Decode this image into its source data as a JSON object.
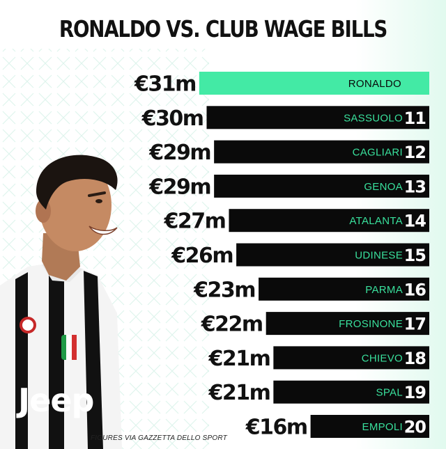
{
  "title": "RONALDO VS. CLUB WAGE BILLS",
  "footer": "FIGURES VIA GAZZETTA DELLO SPORT",
  "player_jersey_text": "Jeep",
  "colors": {
    "highlight": "#43eaa5",
    "bar": "#0a0a0a",
    "label_text": "#39e09c",
    "highlight_text": "#0a0a0a",
    "value_text": "#111111",
    "rank_text": "#ffffff"
  },
  "chart_data": {
    "type": "bar",
    "orientation": "horizontal",
    "title": "RONALDO VS. CLUB WAGE BILLS",
    "xlabel": "",
    "ylabel": "",
    "unit": "€m",
    "xlim": [
      0,
      31
    ],
    "grid": false,
    "categories": [
      "RONALDO",
      "SASSUOLO",
      "CAGLIARI",
      "GENOA",
      "ATALANTA",
      "UDINESE",
      "PARMA",
      "FROSINONE",
      "CHIEVO",
      "SPAL",
      "EMPOLI"
    ],
    "values": [
      31,
      30,
      29,
      29,
      27,
      26,
      23,
      22,
      21,
      21,
      16
    ],
    "value_labels": [
      "€31m",
      "€30m",
      "€29m",
      "€29m",
      "€27m",
      "€26m",
      "€23m",
      "€22m",
      "€21m",
      "€21m",
      "€16m"
    ],
    "ranks": [
      "",
      "11",
      "12",
      "13",
      "14",
      "15",
      "16",
      "17",
      "18",
      "19",
      "20"
    ]
  }
}
